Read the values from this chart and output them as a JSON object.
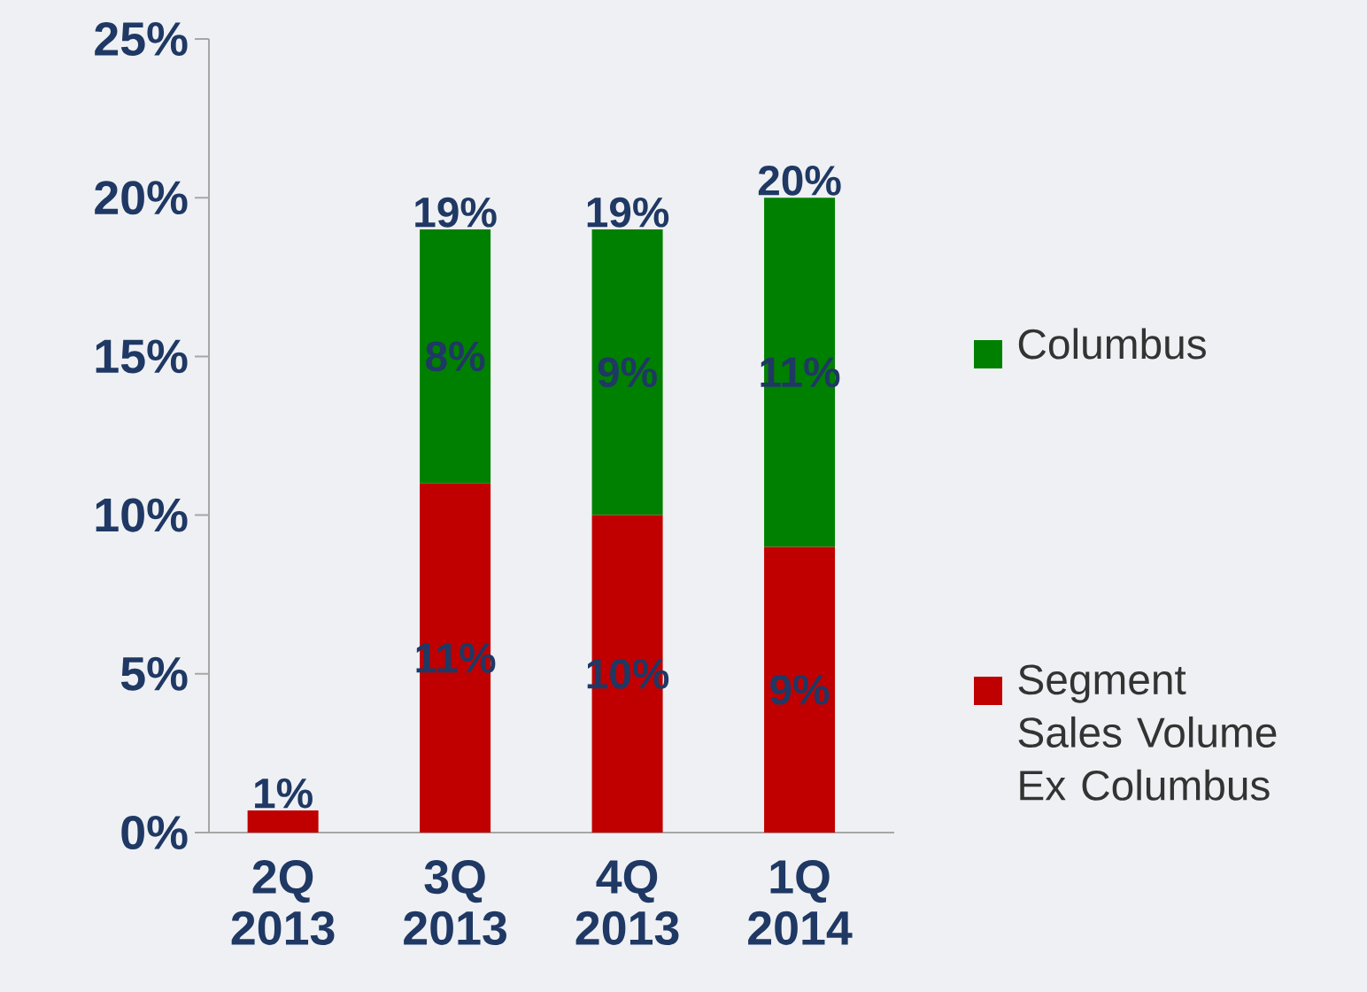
{
  "chart_data": {
    "type": "bar",
    "stacked": true,
    "categories": [
      "2Q 2013",
      "3Q 2013",
      "4Q 2013",
      "1Q 2014"
    ],
    "series": [
      {
        "name": "Segment Sales Volume Ex Columbus",
        "color": "#c00000",
        "values": [
          0.7,
          11,
          10,
          9
        ],
        "value_labels": [
          null,
          "11%",
          "10%",
          "9%"
        ]
      },
      {
        "name": "Columbus",
        "color": "#008000",
        "values": [
          null,
          8,
          9,
          11
        ],
        "value_labels": [
          null,
          "8%",
          "9%",
          "11%"
        ]
      }
    ],
    "totals": [
      "1%",
      "19%",
      "19%",
      "20%"
    ],
    "ylim": [
      0,
      25
    ],
    "yticks": [
      {
        "value": 0,
        "label": "0%"
      },
      {
        "value": 5,
        "label": "5%"
      },
      {
        "value": 10,
        "label": "10%"
      },
      {
        "value": 15,
        "label": "15%"
      },
      {
        "value": 20,
        "label": "20%"
      },
      {
        "value": 25,
        "label": "25%"
      }
    ],
    "grid": false,
    "legend": "right"
  }
}
